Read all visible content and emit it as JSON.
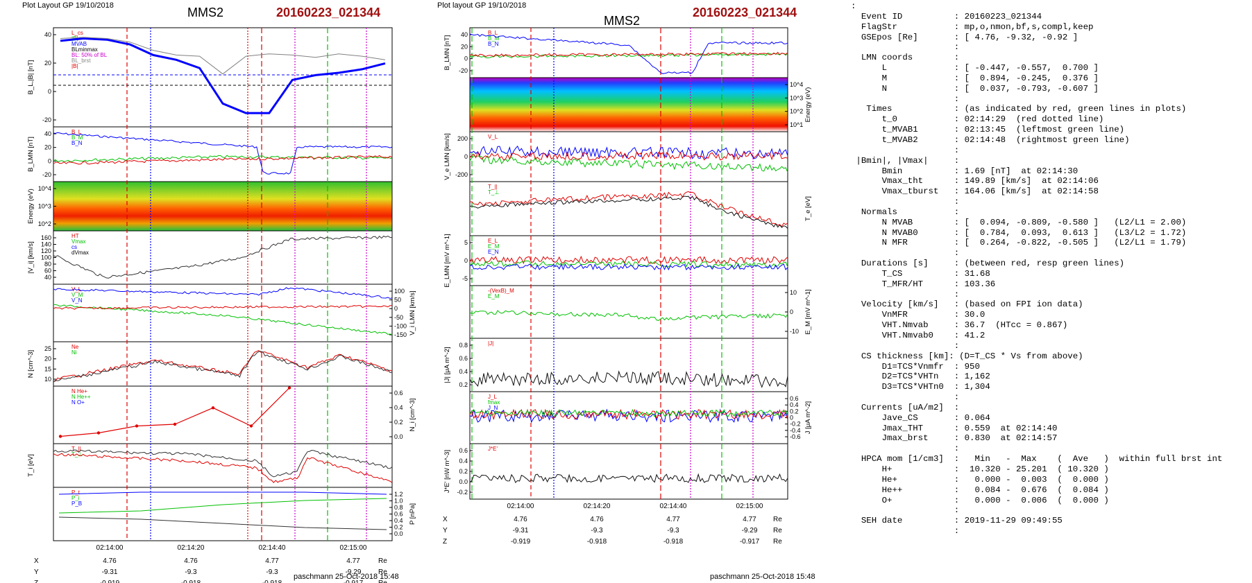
{
  "left": {
    "header": "Plot Layout GP 19/10/2018",
    "spacecraft": "MMS2",
    "event": "20160223_021344",
    "footer": "paschmann 25-Oct-2018 15:48",
    "panels": [
      {
        "ylabel": "B_L,|B| [nT]",
        "ticks": [
          "40",
          "20",
          "0",
          "-20"
        ],
        "legend": [
          "L_cs",
          "|B|",
          "MVAB",
          "BLminmax",
          "BL: 50% of BL",
          "BL_brst",
          "|B|"
        ]
      },
      {
        "ylabel": "B_LMN [nT]",
        "ticks": [
          "40",
          "20",
          "0",
          "-20"
        ],
        "legend": [
          "B_L",
          "B_M",
          "B_N"
        ]
      },
      {
        "ylabel": "Energy (eV)",
        "ticks": [
          "10^4",
          "10^3",
          "10^2"
        ],
        "legend": []
      },
      {
        "ylabel": "|V_i| [km/s]",
        "ticks": [
          "160",
          "140",
          "120",
          "100",
          "80",
          "60",
          "40"
        ],
        "legend": [
          "HT",
          "Vmax",
          "cs",
          "dVmax"
        ]
      },
      {
        "ylabel": "V_i LMN [km/s]",
        "ticks": [
          "100",
          "50",
          "0",
          "-50",
          "-100",
          "-150"
        ],
        "legend": [
          "V_L",
          "V_M",
          "V_N"
        ]
      },
      {
        "ylabel": "N [cm^-3]",
        "ticks": [
          "25",
          "20",
          "15",
          "10"
        ],
        "legend": [
          "Ne",
          "Ni"
        ]
      },
      {
        "ylabel": "N_i [cm^-3]",
        "ticks": [
          "0.6",
          "0.4",
          "0.2",
          "0.0"
        ],
        "legend": [
          "N He+",
          "N He++",
          "N O+"
        ]
      },
      {
        "ylabel": "T_i [eV]",
        "ticks": [],
        "legend": [
          "T_||",
          "T_⊥"
        ]
      },
      {
        "ylabel": "P [nPa]",
        "ticks": [
          "1.2",
          "1.0",
          "0.8",
          "0.6",
          "0.4",
          "0.2",
          "0.0"
        ],
        "legend": [
          "P_t",
          "P_i",
          "P_B"
        ]
      }
    ],
    "xticks": [
      "02:14:00",
      "02:14:20",
      "02:14:40",
      "02:15:00"
    ],
    "coords": {
      "rows": [
        {
          "label": "X",
          "vals": [
            "4.76",
            "4.76",
            "4.77",
            "4.77"
          ],
          "unit": "Re"
        },
        {
          "label": "Y",
          "vals": [
            "-9.31",
            "-9.3",
            "-9.3",
            "-9.29"
          ],
          "unit": "Re"
        },
        {
          "label": "Z",
          "vals": [
            "-0.919",
            "-0.918",
            "-0.918",
            "-0.917"
          ],
          "unit": "Re"
        }
      ]
    }
  },
  "middle": {
    "header": "Plot layout GP 19/10/2018",
    "spacecraft": "MMS2",
    "event": "20160223_021344",
    "footer": "paschmann 25-Oct-2018 15:48",
    "panels": [
      {
        "ylabel": "B_LMN [nT]",
        "ticks": [
          "40",
          "20",
          "0",
          "-20"
        ],
        "legend": [
          "B_L",
          "B_M",
          "B_N"
        ]
      },
      {
        "ylabel": "Energy (eV)",
        "ticks": [
          "10^4",
          "10^3",
          "10^2",
          "10^1"
        ],
        "legend": []
      },
      {
        "ylabel": "V_e LMN [km/s]",
        "ticks": [
          "200",
          "0",
          "-200"
        ],
        "legend": [
          "V_L"
        ]
      },
      {
        "ylabel": "T_e [eV]",
        "ticks": [],
        "legend": [
          "T_||",
          "T_⊥"
        ]
      },
      {
        "ylabel": "E_LMN [mV m^-1]",
        "ticks": [
          "5",
          "0",
          "-5"
        ],
        "legend": [
          "E_L",
          "E_M",
          "E_N"
        ]
      },
      {
        "ylabel": "E_M [mV m^-1]",
        "ticks": [
          "10",
          "0",
          "-10"
        ],
        "legend": [
          "-(VexB)_M",
          "E_M"
        ]
      },
      {
        "ylabel": "|J| [μA m^-2]",
        "ticks": [
          "0.8",
          "0.6",
          "0.4",
          "0.2"
        ],
        "legend": [
          "|J|"
        ]
      },
      {
        "ylabel": "J [μA m^-2]",
        "ticks": [
          "0.6",
          "0.4",
          "0.2",
          "0",
          "-0.2",
          "-0.4",
          "-0.6"
        ],
        "legend": [
          "J_L",
          "fmax",
          "J_N"
        ]
      },
      {
        "ylabel": "J*E' [nW m^-3]",
        "ticks": [
          "0.6",
          "0.4",
          "0.2",
          "0.0",
          "-0.2"
        ],
        "legend": [
          "J*E'"
        ]
      }
    ],
    "xticks": [
      "02:14:00",
      "02:14:20",
      "02:14:40",
      "02:15:00"
    ],
    "coords": {
      "rows": [
        {
          "label": "X",
          "vals": [
            "4.76",
            "4.76",
            "4.77",
            "4.77"
          ],
          "unit": "Re"
        },
        {
          "label": "Y",
          "vals": [
            "-9.31",
            "-9.3",
            "-9.3",
            "-9.29"
          ],
          "unit": "Re"
        },
        {
          "label": "Z",
          "vals": [
            "-0.919",
            "-0.918",
            "-0.918",
            "-0.917"
          ],
          "unit": "Re"
        }
      ]
    }
  },
  "summary_lines": [
    ":",
    "  Event ID          : 20160223_021344",
    "  FlagStr           : mp,o,nmon,bf,s,compl,keep",
    "  GSEpos [Re]       : [ 4.76, -9.32, -0.92 ]",
    "                    :",
    "  LMN coords        :",
    "      L             : [ -0.447, -0.557,  0.700 ]",
    "      M             : [  0.894, -0.245,  0.376 ]",
    "      N             : [  0.037, -0.793, -0.607 ]",
    "                    :",
    "   Times            : (as indicated by red, green lines in plots)",
    "      t_0           : 02:14:29  (red dotted line)",
    "      t_MVAB1       : 02:13:45  (leftmost green line)",
    "      t_MVAB2       : 02:14:48  (rightmost green line)",
    "                    :",
    " |Bmin|, |Vmax|     :",
    "      Bmin          : 1.69 [nT]  at 02:14:30",
    "      Vmax_tht      : 149.89 [km/s]  at 02:14:06",
    "      Vmax_tburst   : 164.06 [km/s]  at 02:14:58",
    "                    :",
    "  Normals           :",
    "      N MVAB        : [  0.094, -0.809, -0.580 ]   (L2/L1 = 2.00)",
    "      N MVAB0       : [  0.784,  0.093,  0.613 ]   (L3/L2 = 1.72)",
    "      N MFR         : [  0.264, -0.822, -0.505 ]   (L2/L1 = 1.79)",
    "                    :",
    "  Durations [s]     : (between red, resp green lines)",
    "      T_CS          : 31.68",
    "      T_MFR/HT      : 103.36",
    "                    :",
    "  Velocity [km/s]   : (based on FPI ion data)",
    "      VnMFR         : 30.0",
    "      VHT.Nmvab     : 36.7  (HTcc = 0.867)",
    "      VHT.Nmvab0    : 41.2",
    "                    :",
    "  CS thickness [km]: (D=T_CS * Vs from above)",
    "      D1=TCS*Vnmfr  : 950",
    "      D2=TCS*VHTn   : 1,162",
    "      D3=TCS*VHTn0  : 1,304",
    "                    :",
    "  Currents [uA/m2]  :",
    "      Jave_CS       : 0.064",
    "      Jmax_THT      : 0.559  at 02:14:40",
    "      Jmax_brst     : 0.830  at 02:14:57",
    "                    :",
    "  HPCA mom [1/cm3]  :   Min   -  Max    (  Ave   )  within full brst int",
    "      H+            :  10.320 - 25.201  ( 10.320 )",
    "      He+           :   0.000 -  0.003  (  0.000 )",
    "      He++          :   0.084 -  0.676  (  0.084 )",
    "      O+            :   0.000 -  0.006  (  0.000 )",
    "                    :",
    "  SEH date          : 2019-11-29 09:49:55",
    "                    :"
  ],
  "colors": {
    "event": "#a01010",
    "red": "#e00000",
    "green": "#00c000",
    "blue": "#0000ff",
    "magenta": "#cc00cc",
    "black": "#000000"
  },
  "chart_data": [
    {
      "type": "line",
      "title": "B_L,|B|",
      "ylabel": "B_L,|B| [nT]",
      "ylim": [
        -30,
        45
      ],
      "x": [
        "02:13:44",
        "02:13:50",
        "02:13:55",
        "02:14:00",
        "02:14:10",
        "02:14:20",
        "02:14:26",
        "02:14:30",
        "02:14:34",
        "02:14:38",
        "02:14:42",
        "02:14:48",
        "02:14:55",
        "02:15:00",
        "02:15:05"
      ],
      "series": [
        {
          "name": "BL_brst",
          "values": [
            38,
            40,
            39,
            35,
            26,
            22,
            15,
            -15,
            -23,
            -23,
            5,
            9,
            11,
            14,
            19
          ]
        },
        {
          "name": "|B|",
          "values": [
            40,
            41,
            40,
            37,
            30,
            26,
            25,
            10,
            25,
            27,
            26,
            24,
            27,
            25,
            22
          ]
        }
      ]
    },
    {
      "type": "line",
      "title": "HPCA N_i",
      "ylabel": "N_i [cm^-3]",
      "ylim": [
        0,
        0.6
      ],
      "x": [
        "02:13:44",
        "02:13:50",
        "02:14:00",
        "02:14:10",
        "02:14:20",
        "02:14:30",
        "02:14:43"
      ],
      "series": [
        {
          "name": "N He++",
          "values": [
            0.06,
            0.1,
            0.18,
            0.2,
            0.39,
            0.18,
            0.62
          ]
        }
      ]
    },
    {
      "type": "line",
      "title": "P",
      "ylabel": "P [nPa]",
      "ylim": [
        0,
        1.2
      ],
      "x": [
        "02:13:44",
        "02:14:00",
        "02:14:20",
        "02:14:40",
        "02:15:00"
      ],
      "series": [
        {
          "name": "P_t",
          "values": [
            1.0,
            1.05,
            1.05,
            1.05,
            1.0
          ]
        },
        {
          "name": "P_i",
          "values": [
            0.55,
            0.6,
            0.75,
            0.85,
            0.9
          ]
        },
        {
          "name": "P_B",
          "values": [
            0.45,
            0.4,
            0.3,
            0.2,
            0.15
          ]
        }
      ]
    }
  ]
}
